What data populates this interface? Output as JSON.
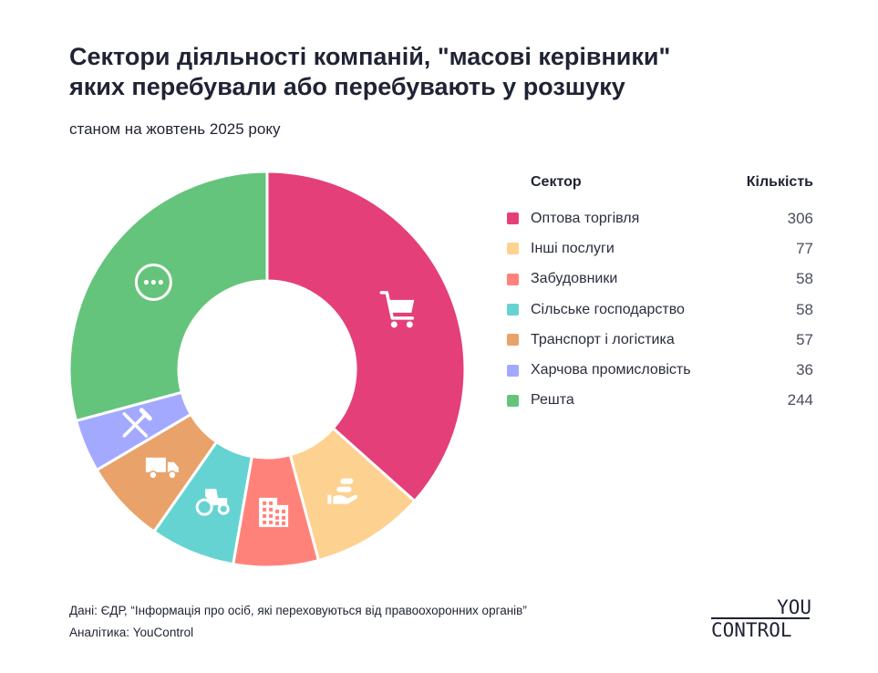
{
  "header": {
    "title_line1": "Сектори діяльності компаній, \"масові керівники\"",
    "title_line2": "яких перебували або перебувають у розшуку",
    "subtitle": "станом на жовтень 2025 року"
  },
  "legend": {
    "col_sector": "Сектор",
    "col_count": "Кількість"
  },
  "chart_data": {
    "type": "pie",
    "variant": "donut",
    "title": "Сектори діяльності компаній, \"масові керівники\" яких перебували або перебувають у розшуку",
    "subtitle": "станом на жовтень 2025 року",
    "categories": [
      "Оптова торгівля",
      "Інші послуги",
      "Забудовники",
      "Сільське господарство",
      "Транспорт і логістика",
      "Харчова промисловість",
      "Решта"
    ],
    "values": [
      306,
      77,
      58,
      58,
      57,
      36,
      244
    ],
    "colors": [
      "#e43f79",
      "#fdd291",
      "#ff827a",
      "#66d3d3",
      "#e9a269",
      "#a3a9ff",
      "#65c47b"
    ],
    "icons": [
      "cart-icon",
      "services-icon",
      "building-icon",
      "tractor-icon",
      "truck-icon",
      "fork-knife-icon",
      "more-icon"
    ],
    "legend_position": "right",
    "start": "top, clockwise"
  },
  "footer": {
    "source": "Дані: ЄДР, “Інформація про осіб, які переховуються від правоохоронних органів”",
    "analytics": "Аналітика: YouControl"
  },
  "logo": {
    "line1": "YOU",
    "line2": "CONTROL"
  }
}
